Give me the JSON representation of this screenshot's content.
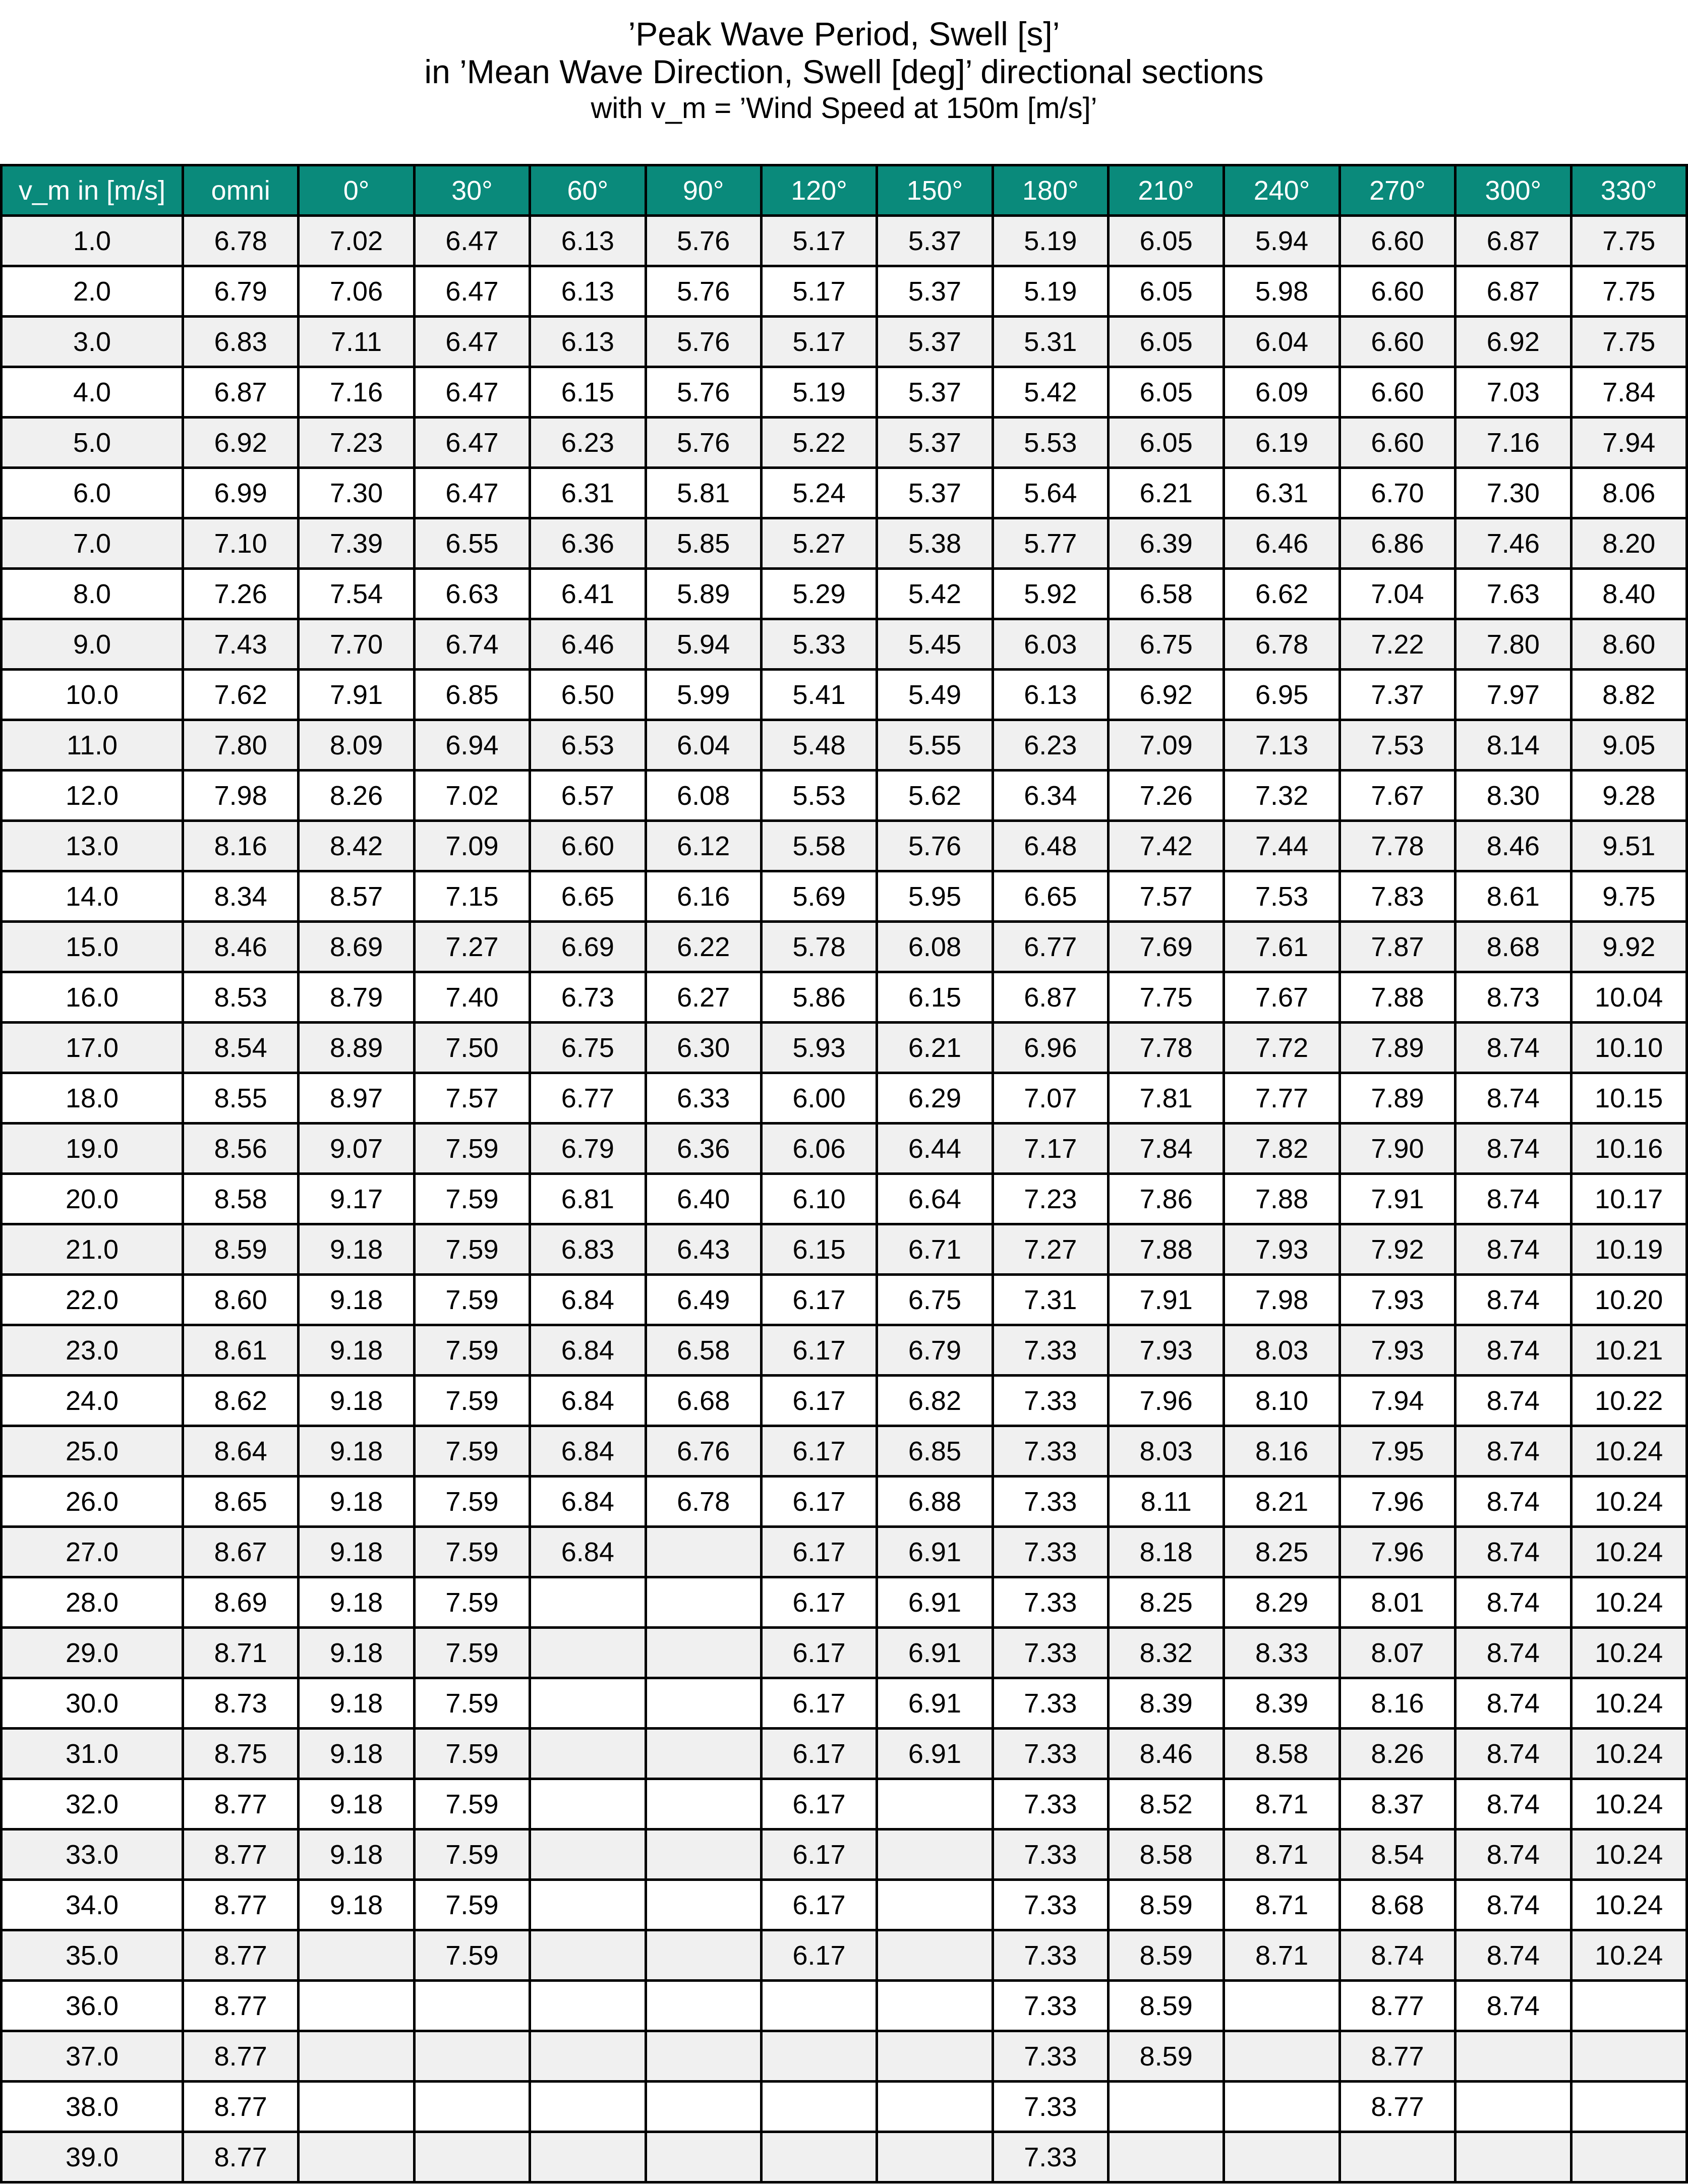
{
  "title": {
    "line1": "’Peak Wave Period, Swell [s]’",
    "line2": "in ’Mean Wave Direction, Swell [deg]’ directional sections",
    "line3": "with v_m = ’Wind Speed at 150m [m/s]’"
  },
  "colors": {
    "header_bg": "#0a8a7b",
    "header_text": "#ffffff",
    "stripe": "#f0f0f0"
  },
  "table": {
    "headers": [
      "v_m in [m/s]",
      "omni",
      "0°",
      "30°",
      "60°",
      "90°",
      "120°",
      "150°",
      "180°",
      "210°",
      "240°",
      "270°",
      "300°",
      "330°"
    ],
    "rows": [
      [
        "1.0",
        "6.78",
        "7.02",
        "6.47",
        "6.13",
        "5.76",
        "5.17",
        "5.37",
        "5.19",
        "6.05",
        "5.94",
        "6.60",
        "6.87",
        "7.75"
      ],
      [
        "2.0",
        "6.79",
        "7.06",
        "6.47",
        "6.13",
        "5.76",
        "5.17",
        "5.37",
        "5.19",
        "6.05",
        "5.98",
        "6.60",
        "6.87",
        "7.75"
      ],
      [
        "3.0",
        "6.83",
        "7.11",
        "6.47",
        "6.13",
        "5.76",
        "5.17",
        "5.37",
        "5.31",
        "6.05",
        "6.04",
        "6.60",
        "6.92",
        "7.75"
      ],
      [
        "4.0",
        "6.87",
        "7.16",
        "6.47",
        "6.15",
        "5.76",
        "5.19",
        "5.37",
        "5.42",
        "6.05",
        "6.09",
        "6.60",
        "7.03",
        "7.84"
      ],
      [
        "5.0",
        "6.92",
        "7.23",
        "6.47",
        "6.23",
        "5.76",
        "5.22",
        "5.37",
        "5.53",
        "6.05",
        "6.19",
        "6.60",
        "7.16",
        "7.94"
      ],
      [
        "6.0",
        "6.99",
        "7.30",
        "6.47",
        "6.31",
        "5.81",
        "5.24",
        "5.37",
        "5.64",
        "6.21",
        "6.31",
        "6.70",
        "7.30",
        "8.06"
      ],
      [
        "7.0",
        "7.10",
        "7.39",
        "6.55",
        "6.36",
        "5.85",
        "5.27",
        "5.38",
        "5.77",
        "6.39",
        "6.46",
        "6.86",
        "7.46",
        "8.20"
      ],
      [
        "8.0",
        "7.26",
        "7.54",
        "6.63",
        "6.41",
        "5.89",
        "5.29",
        "5.42",
        "5.92",
        "6.58",
        "6.62",
        "7.04",
        "7.63",
        "8.40"
      ],
      [
        "9.0",
        "7.43",
        "7.70",
        "6.74",
        "6.46",
        "5.94",
        "5.33",
        "5.45",
        "6.03",
        "6.75",
        "6.78",
        "7.22",
        "7.80",
        "8.60"
      ],
      [
        "10.0",
        "7.62",
        "7.91",
        "6.85",
        "6.50",
        "5.99",
        "5.41",
        "5.49",
        "6.13",
        "6.92",
        "6.95",
        "7.37",
        "7.97",
        "8.82"
      ],
      [
        "11.0",
        "7.80",
        "8.09",
        "6.94",
        "6.53",
        "6.04",
        "5.48",
        "5.55",
        "6.23",
        "7.09",
        "7.13",
        "7.53",
        "8.14",
        "9.05"
      ],
      [
        "12.0",
        "7.98",
        "8.26",
        "7.02",
        "6.57",
        "6.08",
        "5.53",
        "5.62",
        "6.34",
        "7.26",
        "7.32",
        "7.67",
        "8.30",
        "9.28"
      ],
      [
        "13.0",
        "8.16",
        "8.42",
        "7.09",
        "6.60",
        "6.12",
        "5.58",
        "5.76",
        "6.48",
        "7.42",
        "7.44",
        "7.78",
        "8.46",
        "9.51"
      ],
      [
        "14.0",
        "8.34",
        "8.57",
        "7.15",
        "6.65",
        "6.16",
        "5.69",
        "5.95",
        "6.65",
        "7.57",
        "7.53",
        "7.83",
        "8.61",
        "9.75"
      ],
      [
        "15.0",
        "8.46",
        "8.69",
        "7.27",
        "6.69",
        "6.22",
        "5.78",
        "6.08",
        "6.77",
        "7.69",
        "7.61",
        "7.87",
        "8.68",
        "9.92"
      ],
      [
        "16.0",
        "8.53",
        "8.79",
        "7.40",
        "6.73",
        "6.27",
        "5.86",
        "6.15",
        "6.87",
        "7.75",
        "7.67",
        "7.88",
        "8.73",
        "10.04"
      ],
      [
        "17.0",
        "8.54",
        "8.89",
        "7.50",
        "6.75",
        "6.30",
        "5.93",
        "6.21",
        "6.96",
        "7.78",
        "7.72",
        "7.89",
        "8.74",
        "10.10"
      ],
      [
        "18.0",
        "8.55",
        "8.97",
        "7.57",
        "6.77",
        "6.33",
        "6.00",
        "6.29",
        "7.07",
        "7.81",
        "7.77",
        "7.89",
        "8.74",
        "10.15"
      ],
      [
        "19.0",
        "8.56",
        "9.07",
        "7.59",
        "6.79",
        "6.36",
        "6.06",
        "6.44",
        "7.17",
        "7.84",
        "7.82",
        "7.90",
        "8.74",
        "10.16"
      ],
      [
        "20.0",
        "8.58",
        "9.17",
        "7.59",
        "6.81",
        "6.40",
        "6.10",
        "6.64",
        "7.23",
        "7.86",
        "7.88",
        "7.91",
        "8.74",
        "10.17"
      ],
      [
        "21.0",
        "8.59",
        "9.18",
        "7.59",
        "6.83",
        "6.43",
        "6.15",
        "6.71",
        "7.27",
        "7.88",
        "7.93",
        "7.92",
        "8.74",
        "10.19"
      ],
      [
        "22.0",
        "8.60",
        "9.18",
        "7.59",
        "6.84",
        "6.49",
        "6.17",
        "6.75",
        "7.31",
        "7.91",
        "7.98",
        "7.93",
        "8.74",
        "10.20"
      ],
      [
        "23.0",
        "8.61",
        "9.18",
        "7.59",
        "6.84",
        "6.58",
        "6.17",
        "6.79",
        "7.33",
        "7.93",
        "8.03",
        "7.93",
        "8.74",
        "10.21"
      ],
      [
        "24.0",
        "8.62",
        "9.18",
        "7.59",
        "6.84",
        "6.68",
        "6.17",
        "6.82",
        "7.33",
        "7.96",
        "8.10",
        "7.94",
        "8.74",
        "10.22"
      ],
      [
        "25.0",
        "8.64",
        "9.18",
        "7.59",
        "6.84",
        "6.76",
        "6.17",
        "6.85",
        "7.33",
        "8.03",
        "8.16",
        "7.95",
        "8.74",
        "10.24"
      ],
      [
        "26.0",
        "8.65",
        "9.18",
        "7.59",
        "6.84",
        "6.78",
        "6.17",
        "6.88",
        "7.33",
        "8.11",
        "8.21",
        "7.96",
        "8.74",
        "10.24"
      ],
      [
        "27.0",
        "8.67",
        "9.18",
        "7.59",
        "6.84",
        "",
        "6.17",
        "6.91",
        "7.33",
        "8.18",
        "8.25",
        "7.96",
        "8.74",
        "10.24"
      ],
      [
        "28.0",
        "8.69",
        "9.18",
        "7.59",
        "",
        "",
        "6.17",
        "6.91",
        "7.33",
        "8.25",
        "8.29",
        "8.01",
        "8.74",
        "10.24"
      ],
      [
        "29.0",
        "8.71",
        "9.18",
        "7.59",
        "",
        "",
        "6.17",
        "6.91",
        "7.33",
        "8.32",
        "8.33",
        "8.07",
        "8.74",
        "10.24"
      ],
      [
        "30.0",
        "8.73",
        "9.18",
        "7.59",
        "",
        "",
        "6.17",
        "6.91",
        "7.33",
        "8.39",
        "8.39",
        "8.16",
        "8.74",
        "10.24"
      ],
      [
        "31.0",
        "8.75",
        "9.18",
        "7.59",
        "",
        "",
        "6.17",
        "6.91",
        "7.33",
        "8.46",
        "8.58",
        "8.26",
        "8.74",
        "10.24"
      ],
      [
        "32.0",
        "8.77",
        "9.18",
        "7.59",
        "",
        "",
        "6.17",
        "",
        "7.33",
        "8.52",
        "8.71",
        "8.37",
        "8.74",
        "10.24"
      ],
      [
        "33.0",
        "8.77",
        "9.18",
        "7.59",
        "",
        "",
        "6.17",
        "",
        "7.33",
        "8.58",
        "8.71",
        "8.54",
        "8.74",
        "10.24"
      ],
      [
        "34.0",
        "8.77",
        "9.18",
        "7.59",
        "",
        "",
        "6.17",
        "",
        "7.33",
        "8.59",
        "8.71",
        "8.68",
        "8.74",
        "10.24"
      ],
      [
        "35.0",
        "8.77",
        "",
        "7.59",
        "",
        "",
        "6.17",
        "",
        "7.33",
        "8.59",
        "8.71",
        "8.74",
        "8.74",
        "10.24"
      ],
      [
        "36.0",
        "8.77",
        "",
        "",
        "",
        "",
        "",
        "",
        "7.33",
        "8.59",
        "",
        "8.77",
        "8.74",
        ""
      ],
      [
        "37.0",
        "8.77",
        "",
        "",
        "",
        "",
        "",
        "",
        "7.33",
        "8.59",
        "",
        "8.77",
        "",
        ""
      ],
      [
        "38.0",
        "8.77",
        "",
        "",
        "",
        "",
        "",
        "",
        "7.33",
        "",
        "",
        "8.77",
        "",
        ""
      ],
      [
        "39.0",
        "8.77",
        "",
        "",
        "",
        "",
        "",
        "",
        "7.33",
        "",
        "",
        "",
        "",
        ""
      ]
    ]
  }
}
